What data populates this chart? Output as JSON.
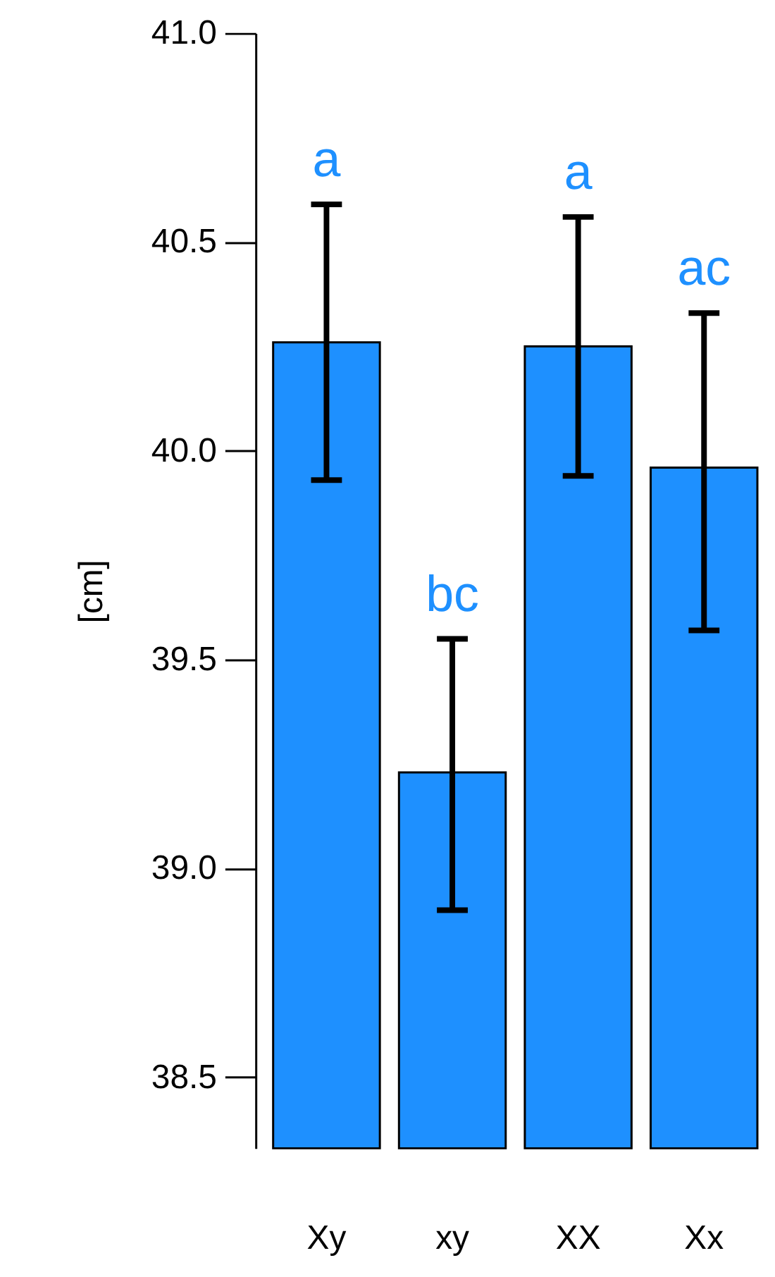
{
  "chart_data": {
    "type": "bar",
    "ylabel": "[cm]",
    "categories": [
      "Xy",
      "xy",
      "XX",
      "Xx"
    ],
    "values": [
      40.26,
      39.23,
      40.25,
      39.96
    ],
    "errors": [
      [
        39.93,
        40.59
      ],
      [
        38.9,
        39.55
      ],
      [
        39.94,
        40.56
      ],
      [
        39.57,
        40.33
      ]
    ],
    "color": "#1e90ff",
    "ylim": [
      38.33,
      41.0
    ],
    "yticks": [
      {
        "value": 38.5,
        "label": "38.5"
      },
      {
        "value": 39.0,
        "label": "39.0"
      },
      {
        "value": 39.5,
        "label": "39.5"
      },
      {
        "value": 40.0,
        "label": "40.0"
      },
      {
        "value": 40.5,
        "label": "40.5"
      },
      {
        "value": 41.0,
        "label": "41.0"
      }
    ],
    "annotations": [
      "a",
      "bc",
      "a",
      "ac"
    ],
    "grid": false
  }
}
